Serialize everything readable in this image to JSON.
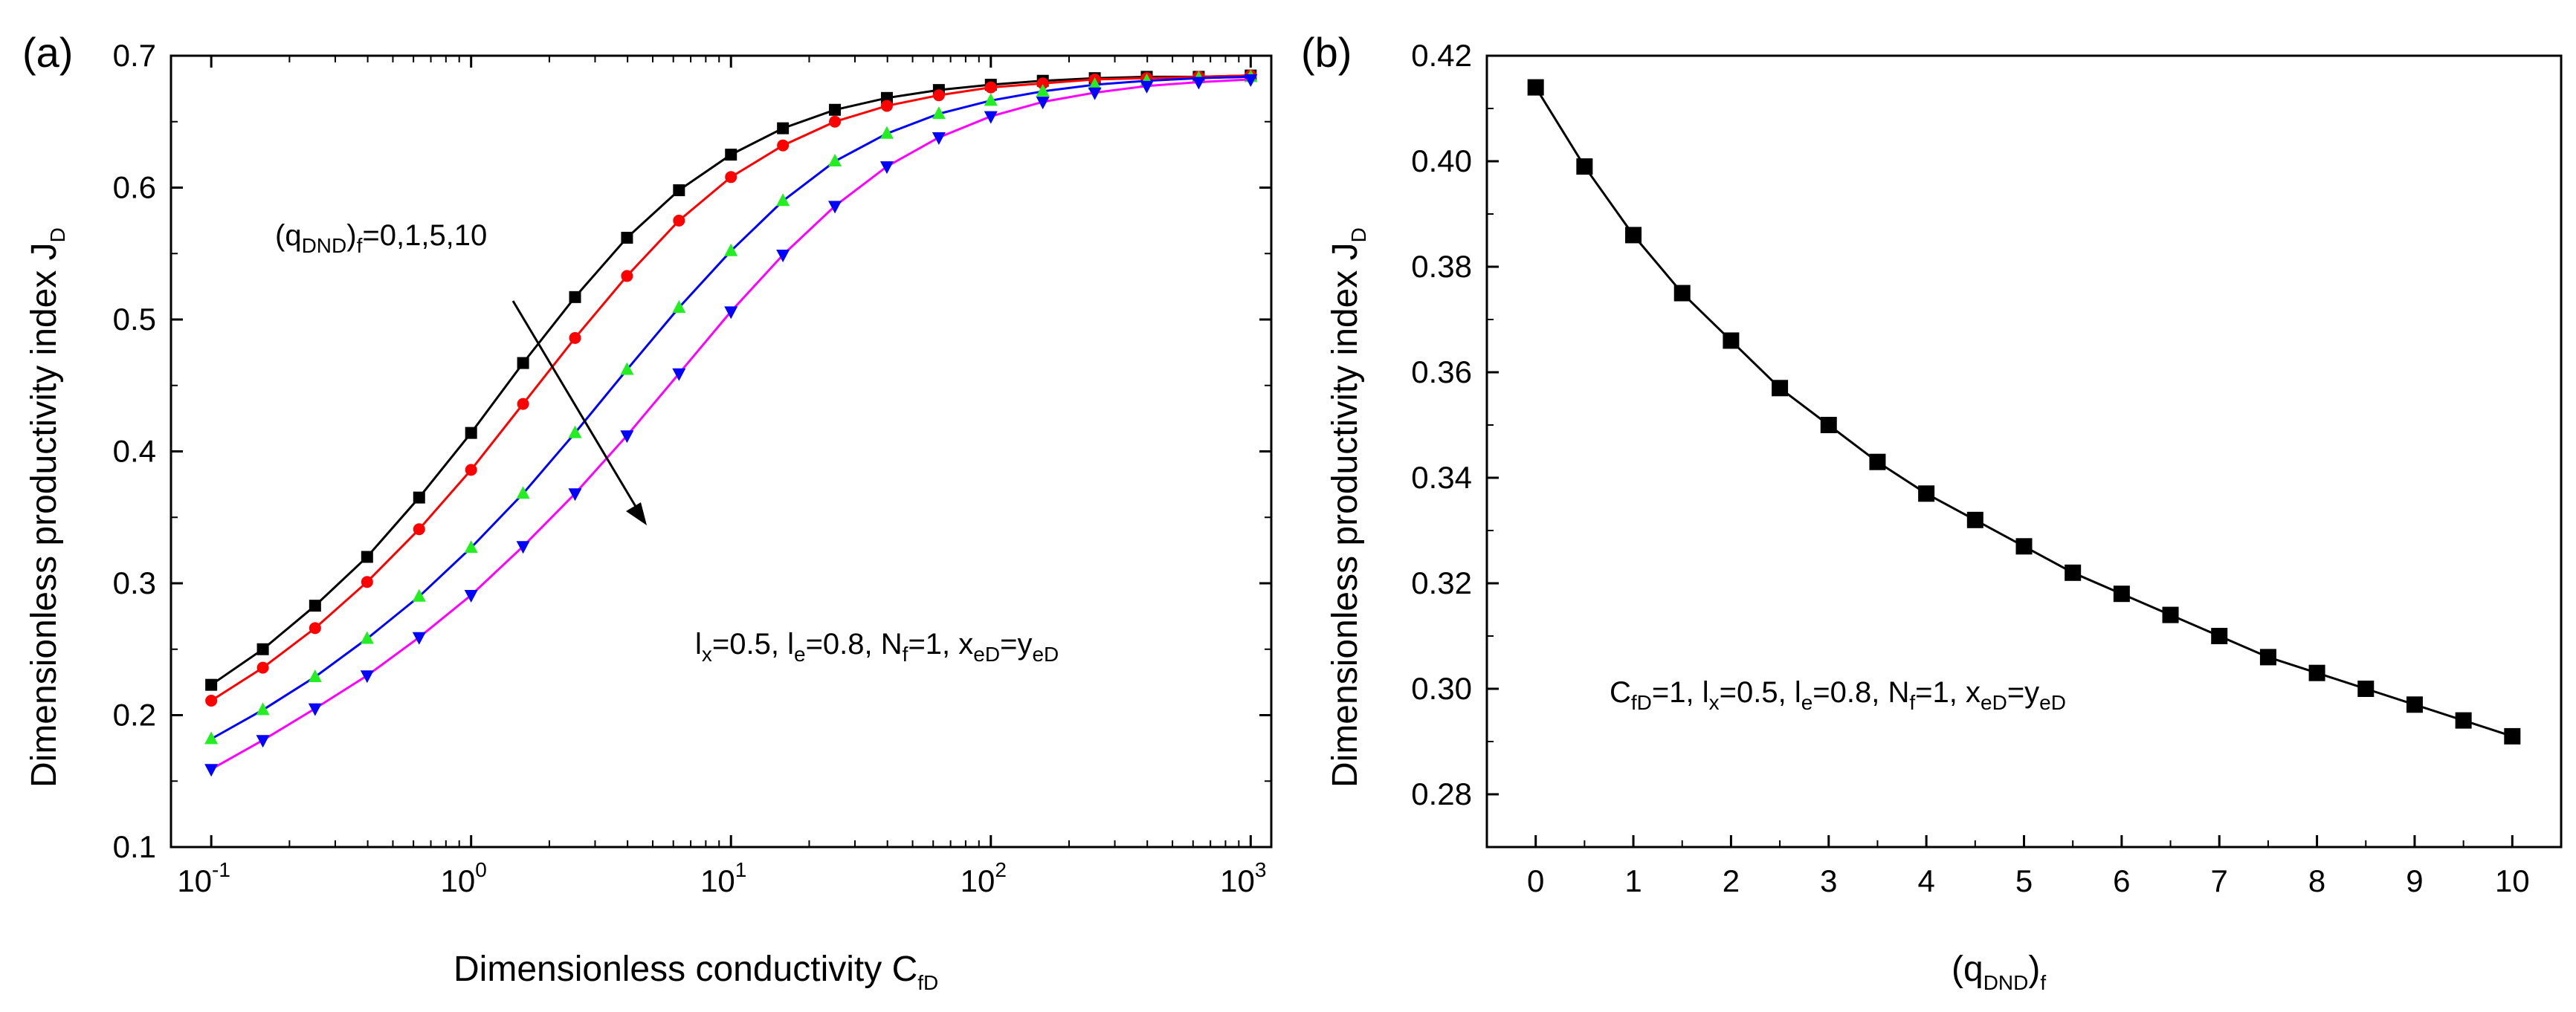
{
  "chart_data": [
    {
      "type": "line",
      "panel_label": "(a)",
      "xscale": "log",
      "xlim": [
        0.07,
        1200
      ],
      "ylim": [
        0.1,
        0.7
      ],
      "xticks": [
        {
          "value": 0.1,
          "base": "10",
          "exp": "-1"
        },
        {
          "value": 1,
          "base": "10",
          "exp": "0"
        },
        {
          "value": 10,
          "base": "10",
          "exp": "1"
        },
        {
          "value": 100,
          "base": "10",
          "exp": "2"
        },
        {
          "value": 1000,
          "base": "10",
          "exp": "3"
        }
      ],
      "yticks": [
        {
          "value": 0.1,
          "label": "0.1"
        },
        {
          "value": 0.2,
          "label": "0.2"
        },
        {
          "value": 0.3,
          "label": "0.3"
        },
        {
          "value": 0.4,
          "label": "0.4"
        },
        {
          "value": 0.5,
          "label": "0.5"
        },
        {
          "value": 0.6,
          "label": "0.6"
        },
        {
          "value": 0.7,
          "label": "0.7"
        }
      ],
      "xlabel": {
        "main": "Dimensionless conductivity C",
        "sub": "fD"
      },
      "ylabel": {
        "main": "Dimensionless productivity index J",
        "sub": "D"
      },
      "x": [
        0.1,
        0.158,
        0.251,
        0.398,
        0.631,
        1,
        1.585,
        2.512,
        3.981,
        6.31,
        10,
        15.85,
        25.12,
        39.81,
        63.1,
        100,
        158.5,
        251.2,
        398.1,
        631,
        1000
      ],
      "series": [
        {
          "color": "#000000",
          "marker": "square",
          "values": [
            0.223,
            0.25,
            0.283,
            0.32,
            0.365,
            0.414,
            0.467,
            0.517,
            0.562,
            0.598,
            0.625,
            0.645,
            0.659,
            0.668,
            0.674,
            0.678,
            0.681,
            0.683,
            0.684,
            0.684,
            0.685
          ]
        },
        {
          "color": "#ff0000",
          "marker": "circle",
          "values": [
            0.211,
            0.236,
            0.266,
            0.301,
            0.341,
            0.386,
            0.436,
            0.486,
            0.533,
            0.575,
            0.608,
            0.632,
            0.65,
            0.662,
            0.67,
            0.676,
            0.679,
            0.682,
            0.683,
            0.684,
            0.685
          ]
        },
        {
          "color": "#0000ff",
          "marker": "triangle-up",
          "values": [
            0.182,
            0.204,
            0.229,
            0.258,
            0.29,
            0.327,
            0.368,
            0.414,
            0.462,
            0.509,
            0.552,
            0.59,
            0.62,
            0.641,
            0.656,
            0.666,
            0.673,
            0.678,
            0.681,
            0.683,
            0.684
          ]
        },
        {
          "color": "#ff00ff",
          "marker": "triangle-down",
          "values": [
            0.159,
            0.181,
            0.205,
            0.23,
            0.259,
            0.291,
            0.328,
            0.368,
            0.412,
            0.459,
            0.506,
            0.549,
            0.586,
            0.616,
            0.638,
            0.654,
            0.665,
            0.672,
            0.677,
            0.68,
            0.682
          ]
        }
      ],
      "marker_colors": [
        "#000000",
        "#ff0000",
        "#22ee22",
        "#0000ff"
      ],
      "annotations": {
        "q_label": {
          "open": "(q",
          "sub1": "DND",
          "close": ")",
          "sub2": "f",
          "rest": "=0,1,5,10"
        },
        "params": [
          {
            "main": "l",
            "sub": "x",
            "rest": "=0.5, "
          },
          {
            "main": "l",
            "sub": "e",
            "rest": "=0.8, "
          },
          {
            "main": "N",
            "sub": "f",
            "rest": "=1, "
          },
          {
            "main": "x",
            "sub": "eD",
            "rest": "=y"
          },
          {
            "main": "",
            "sub": "eD",
            "rest": ""
          }
        ]
      }
    },
    {
      "type": "line",
      "panel_label": "(b)",
      "xlim": [
        -0.5,
        10.5
      ],
      "ylim": [
        0.27,
        0.42
      ],
      "xticks": [
        {
          "value": 0,
          "label": "0"
        },
        {
          "value": 1,
          "label": "1"
        },
        {
          "value": 2,
          "label": "2"
        },
        {
          "value": 3,
          "label": "3"
        },
        {
          "value": 4,
          "label": "4"
        },
        {
          "value": 5,
          "label": "5"
        },
        {
          "value": 6,
          "label": "6"
        },
        {
          "value": 7,
          "label": "7"
        },
        {
          "value": 8,
          "label": "8"
        },
        {
          "value": 9,
          "label": "9"
        },
        {
          "value": 10,
          "label": "10"
        }
      ],
      "yticks": [
        {
          "value": 0.28,
          "label": "0.28"
        },
        {
          "value": 0.3,
          "label": "0.30"
        },
        {
          "value": 0.32,
          "label": "0.32"
        },
        {
          "value": 0.34,
          "label": "0.34"
        },
        {
          "value": 0.36,
          "label": "0.36"
        },
        {
          "value": 0.38,
          "label": "0.38"
        },
        {
          "value": 0.4,
          "label": "0.40"
        },
        {
          "value": 0.42,
          "label": "0.42"
        }
      ],
      "xlabel": {
        "open": "(q",
        "sub1": "DND",
        "close": ")",
        "sub2": "f"
      },
      "ylabel": {
        "main": "Dimensionless productivity index J",
        "sub": "D"
      },
      "x": [
        0,
        0.5,
        1,
        1.5,
        2,
        2.5,
        3,
        3.5,
        4,
        4.5,
        5,
        5.5,
        6,
        6.5,
        7,
        7.5,
        8,
        8.5,
        9,
        9.5,
        10
      ],
      "series": [
        {
          "color": "#000000",
          "marker": "square",
          "values": [
            0.414,
            0.399,
            0.386,
            0.375,
            0.366,
            0.357,
            0.35,
            0.343,
            0.337,
            0.332,
            0.327,
            0.322,
            0.318,
            0.314,
            0.31,
            0.306,
            0.303,
            0.3,
            0.297,
            0.294,
            0.291
          ]
        }
      ],
      "annotations": {
        "params": [
          {
            "main": "C",
            "sub": "fD",
            "rest": "=1, "
          },
          {
            "main": "l",
            "sub": "x",
            "rest": "=0.5, "
          },
          {
            "main": "l",
            "sub": "e",
            "rest": "=0.8, "
          },
          {
            "main": "N",
            "sub": "f",
            "rest": "=1, "
          },
          {
            "main": "x",
            "sub": "eD",
            "rest": "=y"
          },
          {
            "main": "",
            "sub": "eD",
            "rest": ""
          }
        ]
      }
    }
  ]
}
